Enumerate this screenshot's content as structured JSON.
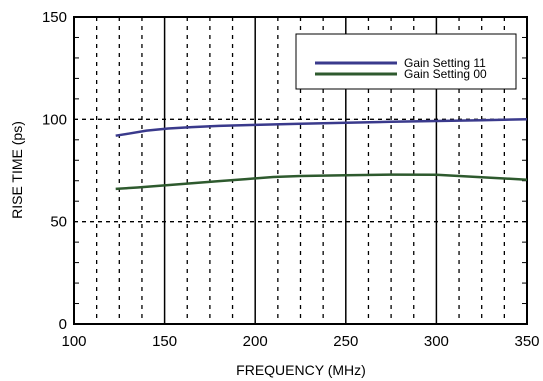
{
  "chart_data": {
    "type": "line",
    "title": "",
    "xlabel": "FREQUENCY (MHz)",
    "ylabel": "RISE TIME (ps)",
    "xlim": [
      100,
      350
    ],
    "ylim": [
      0,
      150
    ],
    "x_ticks": [
      100,
      150,
      200,
      250,
      300,
      350
    ],
    "y_ticks": [
      0,
      50,
      100,
      150
    ],
    "x_tick_labels": [
      "100",
      "150",
      "200",
      "250",
      "300",
      "350"
    ],
    "y_tick_labels": [
      "0",
      "50",
      "100",
      "150"
    ],
    "x_minor_step": 12.5,
    "y_minor_ticks": [
      10,
      20,
      30,
      40,
      60,
      70,
      80,
      90,
      110,
      120,
      130,
      140
    ],
    "grid": true,
    "legend_position": "top-right",
    "series": [
      {
        "name": "Gain Setting 11",
        "color": "#3a3a8c",
        "x": [
          123,
          130,
          140,
          152,
          165,
          180,
          200,
          225,
          250,
          275,
          300,
          325,
          350
        ],
        "y": [
          92,
          93,
          94.5,
          95.5,
          96.2,
          96.8,
          97.3,
          97.8,
          98.3,
          98.8,
          99.2,
          99.6,
          100
        ]
      },
      {
        "name": "Gain Setting 00",
        "color": "#2e5a2e",
        "x": [
          123,
          135,
          150,
          165,
          180,
          195,
          210,
          225,
          250,
          275,
          300,
          315,
          330,
          350
        ],
        "y": [
          66,
          66.7,
          67.7,
          68.8,
          69.8,
          70.8,
          71.8,
          72.3,
          72.7,
          73,
          72.9,
          72.2,
          71.5,
          70.5
        ]
      }
    ]
  }
}
